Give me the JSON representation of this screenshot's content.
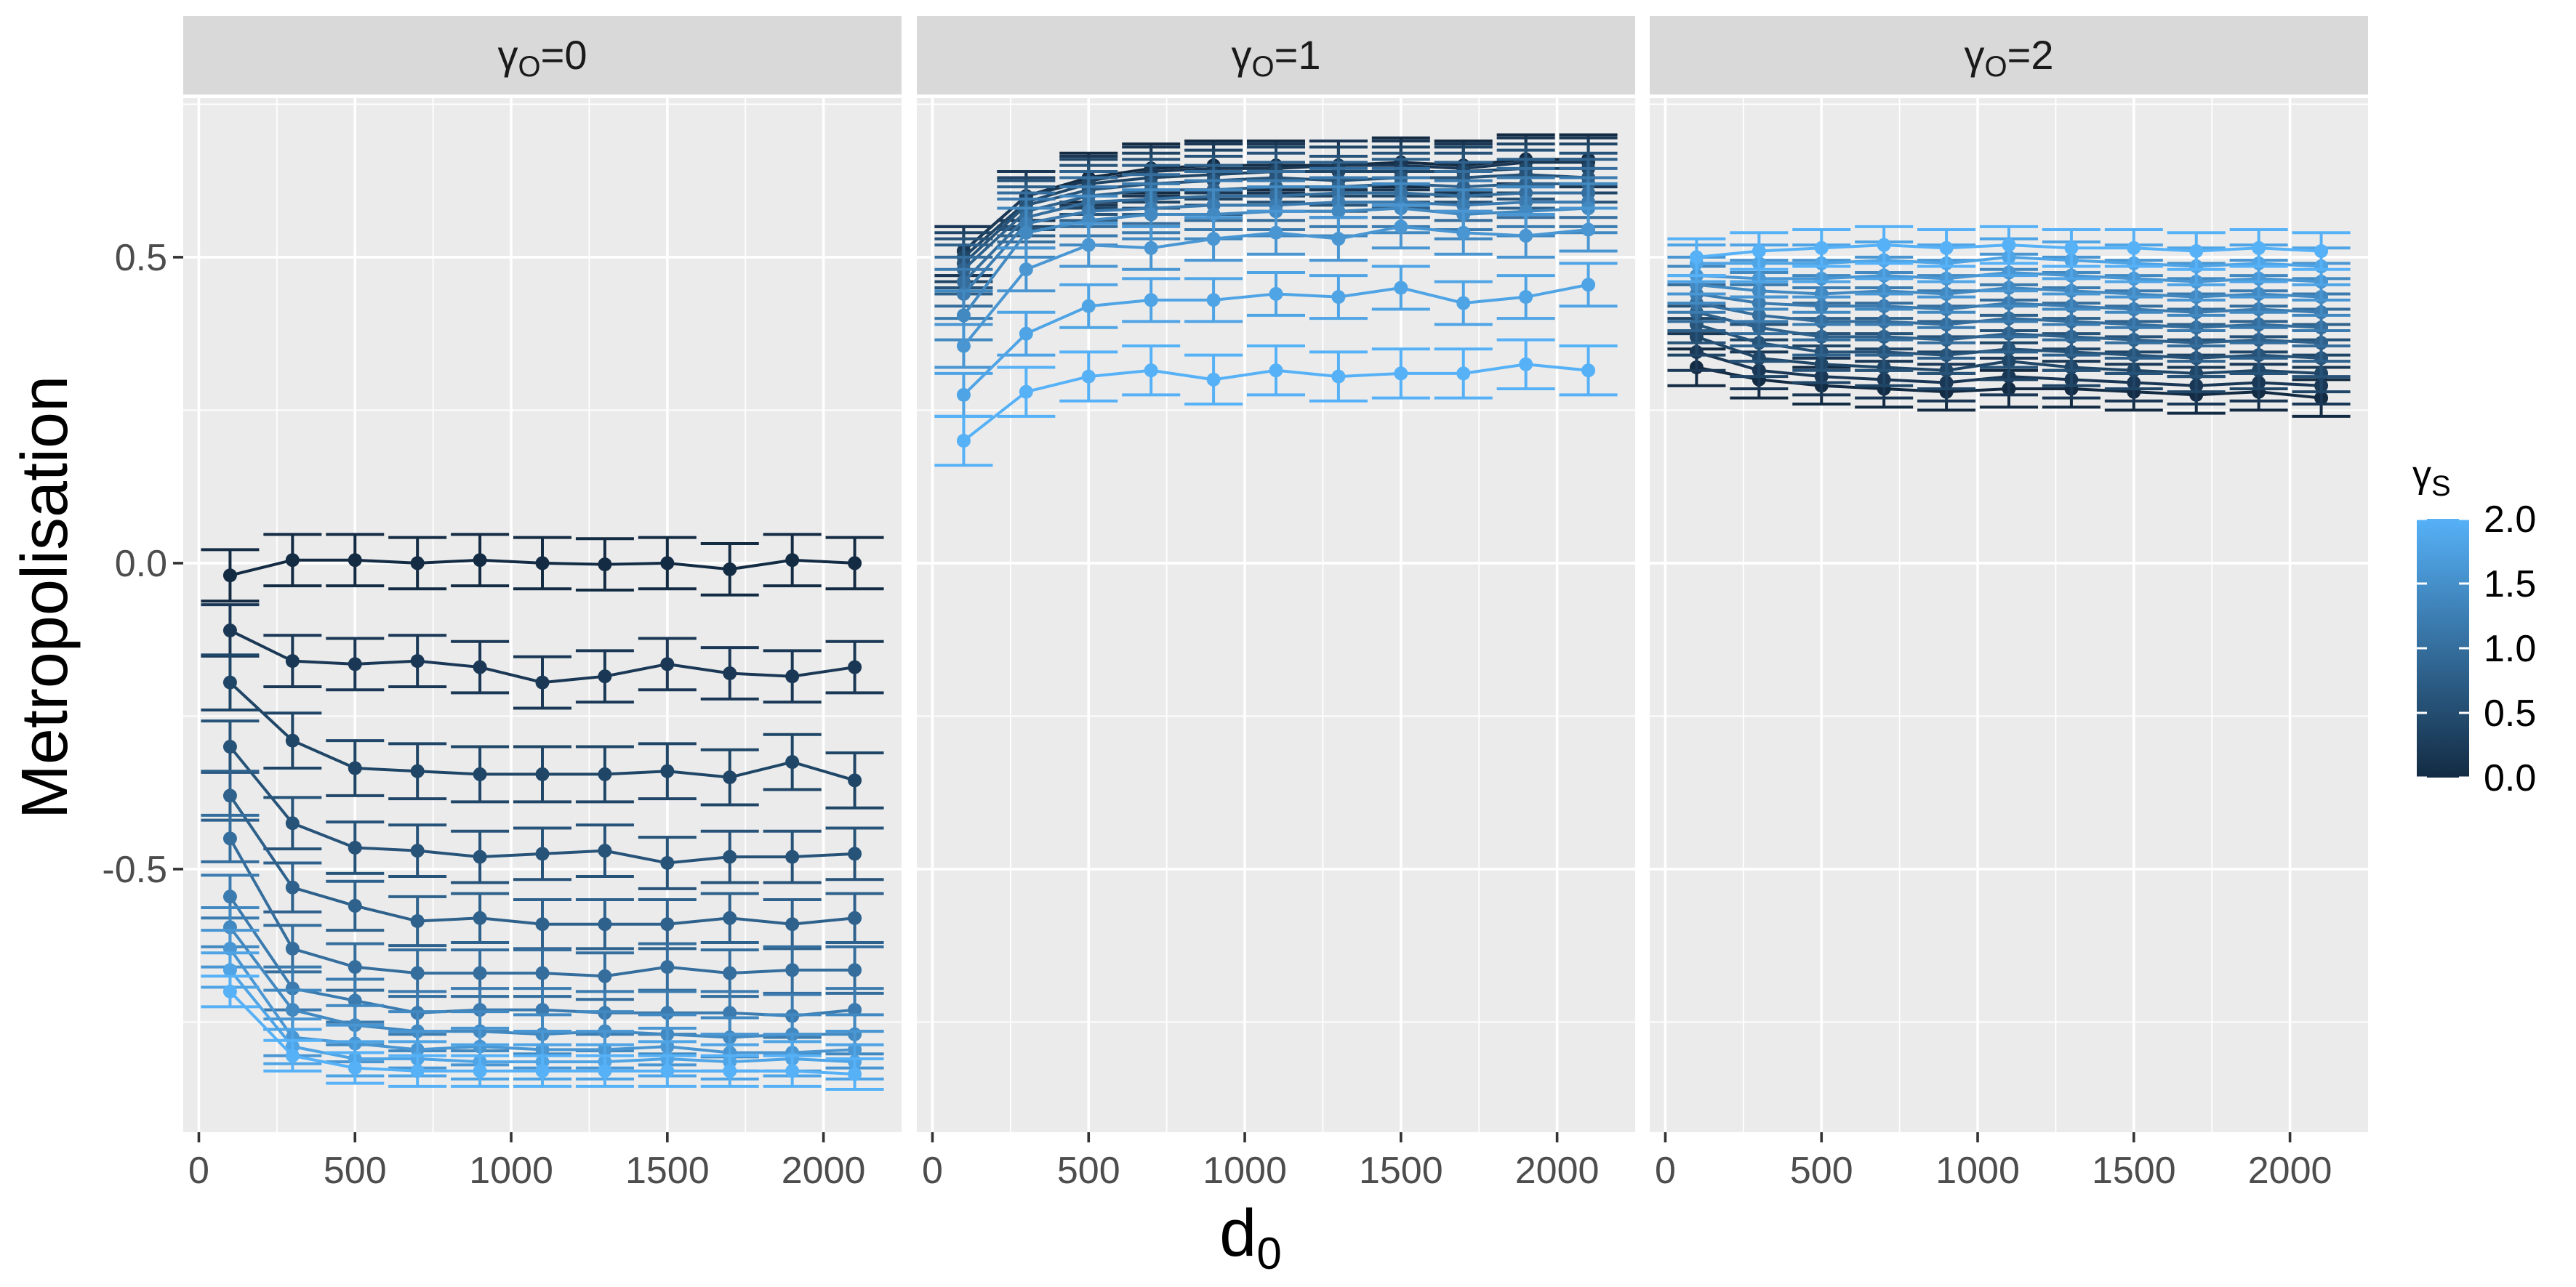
{
  "chart_data": {
    "type": "line",
    "x_axis": {
      "title": "d",
      "title_subscript": "0",
      "ticks": [
        0,
        500,
        1000,
        1500,
        2000
      ],
      "range": [
        -50,
        2250
      ]
    },
    "y_axis": {
      "title": "Metropolisation",
      "ticks": [
        0.5,
        0.0,
        -0.5
      ],
      "tick_labels": [
        "0.5",
        "0.0",
        "-0.5"
      ],
      "range": [
        -0.93,
        0.76
      ]
    },
    "x_values": [
      100,
      300,
      500,
      700,
      900,
      1100,
      1300,
      1500,
      1700,
      1900,
      2100
    ],
    "legend": {
      "title": "γ",
      "title_subscript": "S",
      "ticks": [
        2.0,
        1.5,
        1.0,
        0.5,
        0.0
      ],
      "tick_labels": [
        "2.0",
        "1.5",
        "1.0",
        "0.5",
        "0.0"
      ],
      "color_low": "#132B43",
      "color_high": "#56B1F7",
      "placement": "right"
    },
    "facets": [
      {
        "label_main": "γ",
        "label_sub": "O",
        "label_rest": "=0",
        "series": [
          {
            "gamma_s": 0.0,
            "y": [
              -0.02,
              0.005,
              0.005,
              0.0,
              0.005,
              0.0,
              -0.002,
              0.0,
              -0.01,
              0.005,
              0.0
            ],
            "err": 0.042
          },
          {
            "gamma_s": 0.2,
            "y": [
              -0.11,
              -0.16,
              -0.165,
              -0.16,
              -0.17,
              -0.195,
              -0.185,
              -0.165,
              -0.18,
              -0.185,
              -0.17
            ],
            "err": 0.042
          },
          {
            "gamma_s": 0.4,
            "y": [
              -0.195,
              -0.29,
              -0.335,
              -0.34,
              -0.345,
              -0.345,
              -0.345,
              -0.34,
              -0.35,
              -0.325,
              -0.355
            ],
            "err": 0.045
          },
          {
            "gamma_s": 0.6,
            "y": [
              -0.3,
              -0.425,
              -0.465,
              -0.47,
              -0.48,
              -0.475,
              -0.47,
              -0.49,
              -0.48,
              -0.48,
              -0.475
            ],
            "err": 0.042
          },
          {
            "gamma_s": 0.8,
            "y": [
              -0.38,
              -0.53,
              -0.56,
              -0.585,
              -0.58,
              -0.59,
              -0.59,
              -0.59,
              -0.58,
              -0.59,
              -0.58
            ],
            "err": 0.04
          },
          {
            "gamma_s": 1.0,
            "y": [
              -0.45,
              -0.63,
              -0.66,
              -0.67,
              -0.67,
              -0.67,
              -0.675,
              -0.66,
              -0.67,
              -0.665,
              -0.665
            ],
            "err": 0.038
          },
          {
            "gamma_s": 1.2,
            "y": [
              -0.545,
              -0.695,
              -0.715,
              -0.735,
              -0.73,
              -0.73,
              -0.735,
              -0.735,
              -0.735,
              -0.74,
              -0.73
            ],
            "err": 0.035
          },
          {
            "gamma_s": 1.4,
            "y": [
              -0.595,
              -0.73,
              -0.755,
              -0.765,
              -0.765,
              -0.77,
              -0.765,
              -0.77,
              -0.775,
              -0.77,
              -0.77
            ],
            "err": 0.032
          },
          {
            "gamma_s": 1.6,
            "y": [
              -0.63,
              -0.775,
              -0.785,
              -0.795,
              -0.79,
              -0.795,
              -0.795,
              -0.79,
              -0.8,
              -0.8,
              -0.795
            ],
            "err": 0.03
          },
          {
            "gamma_s": 1.8,
            "y": [
              -0.665,
              -0.79,
              -0.81,
              -0.81,
              -0.815,
              -0.815,
              -0.815,
              -0.81,
              -0.815,
              -0.81,
              -0.815
            ],
            "err": 0.028
          },
          {
            "gamma_s": 2.0,
            "y": [
              -0.7,
              -0.805,
              -0.825,
              -0.83,
              -0.83,
              -0.83,
              -0.83,
              -0.83,
              -0.83,
              -0.83,
              -0.835
            ],
            "err": 0.025
          }
        ]
      },
      {
        "label_main": "γ",
        "label_sub": "O",
        "label_rest": "=1",
        "series": [
          {
            "gamma_s": 0.0,
            "y": [
              0.51,
              0.6,
              0.63,
              0.645,
              0.65,
              0.65,
              0.65,
              0.655,
              0.65,
              0.66,
              0.66
            ],
            "err": 0.04
          },
          {
            "gamma_s": 0.2,
            "y": [
              0.51,
              0.6,
              0.625,
              0.64,
              0.645,
              0.645,
              0.65,
              0.65,
              0.645,
              0.655,
              0.655
            ],
            "err": 0.04
          },
          {
            "gamma_s": 0.4,
            "y": [
              0.5,
              0.59,
              0.62,
              0.63,
              0.635,
              0.64,
              0.64,
              0.64,
              0.64,
              0.645,
              0.645
            ],
            "err": 0.04
          },
          {
            "gamma_s": 0.6,
            "y": [
              0.49,
              0.585,
              0.61,
              0.62,
              0.625,
              0.63,
              0.625,
              0.63,
              0.63,
              0.635,
              0.63
            ],
            "err": 0.04
          },
          {
            "gamma_s": 0.8,
            "y": [
              0.48,
              0.575,
              0.6,
              0.61,
              0.61,
              0.615,
              0.615,
              0.62,
              0.615,
              0.62,
              0.62
            ],
            "err": 0.04
          },
          {
            "gamma_s": 1.0,
            "y": [
              0.46,
              0.565,
              0.59,
              0.595,
              0.6,
              0.6,
              0.605,
              0.605,
              0.6,
              0.605,
              0.605
            ],
            "err": 0.04
          },
          {
            "gamma_s": 1.2,
            "y": [
              0.44,
              0.555,
              0.575,
              0.58,
              0.585,
              0.585,
              0.59,
              0.59,
              0.585,
              0.59,
              0.59
            ],
            "err": 0.04
          },
          {
            "gamma_s": 1.4,
            "y": [
              0.405,
              0.54,
              0.56,
              0.57,
              0.57,
              0.575,
              0.575,
              0.58,
              0.57,
              0.575,
              0.58
            ],
            "err": 0.04
          },
          {
            "gamma_s": 1.6,
            "y": [
              0.355,
              0.48,
              0.52,
              0.515,
              0.53,
              0.54,
              0.53,
              0.55,
              0.54,
              0.535,
              0.545
            ],
            "err": 0.035
          },
          {
            "gamma_s": 1.8,
            "y": [
              0.275,
              0.375,
              0.42,
              0.43,
              0.43,
              0.44,
              0.435,
              0.45,
              0.425,
              0.435,
              0.455
            ],
            "err": 0.035
          },
          {
            "gamma_s": 2.0,
            "y": [
              0.2,
              0.28,
              0.305,
              0.315,
              0.3,
              0.315,
              0.305,
              0.31,
              0.31,
              0.325,
              0.315
            ],
            "err": 0.04
          }
        ]
      },
      {
        "label_main": "γ",
        "label_sub": "O",
        "label_rest": "=2",
        "series": [
          {
            "gamma_s": 0.0,
            "y": [
              0.32,
              0.3,
              0.29,
              0.285,
              0.28,
              0.285,
              0.285,
              0.28,
              0.275,
              0.28,
              0.27
            ],
            "err": 0.03
          },
          {
            "gamma_s": 0.2,
            "y": [
              0.345,
              0.315,
              0.305,
              0.3,
              0.295,
              0.305,
              0.3,
              0.295,
              0.29,
              0.295,
              0.29
            ],
            "err": 0.03
          },
          {
            "gamma_s": 0.4,
            "y": [
              0.37,
              0.335,
              0.325,
              0.32,
              0.315,
              0.33,
              0.32,
              0.315,
              0.31,
              0.315,
              0.31
            ],
            "err": 0.03
          },
          {
            "gamma_s": 0.6,
            "y": [
              0.39,
              0.36,
              0.345,
              0.345,
              0.34,
              0.35,
              0.345,
              0.34,
              0.335,
              0.34,
              0.335
            ],
            "err": 0.03
          },
          {
            "gamma_s": 0.8,
            "y": [
              0.41,
              0.385,
              0.37,
              0.37,
              0.365,
              0.375,
              0.37,
              0.365,
              0.36,
              0.365,
              0.36
            ],
            "err": 0.03
          },
          {
            "gamma_s": 1.0,
            "y": [
              0.425,
              0.405,
              0.395,
              0.395,
              0.39,
              0.4,
              0.395,
              0.39,
              0.385,
              0.39,
              0.385
            ],
            "err": 0.03
          },
          {
            "gamma_s": 1.2,
            "y": [
              0.44,
              0.425,
              0.42,
              0.42,
              0.415,
              0.425,
              0.42,
              0.415,
              0.41,
              0.415,
              0.41
            ],
            "err": 0.03
          },
          {
            "gamma_s": 1.4,
            "y": [
              0.455,
              0.445,
              0.44,
              0.445,
              0.44,
              0.45,
              0.445,
              0.44,
              0.435,
              0.44,
              0.435
            ],
            "err": 0.03
          },
          {
            "gamma_s": 1.6,
            "y": [
              0.47,
              0.465,
              0.465,
              0.47,
              0.465,
              0.475,
              0.47,
              0.465,
              0.46,
              0.465,
              0.46
            ],
            "err": 0.03
          },
          {
            "gamma_s": 1.8,
            "y": [
              0.49,
              0.49,
              0.49,
              0.495,
              0.49,
              0.5,
              0.495,
              0.49,
              0.485,
              0.49,
              0.485
            ],
            "err": 0.03
          },
          {
            "gamma_s": 2.0,
            "y": [
              0.5,
              0.51,
              0.515,
              0.52,
              0.515,
              0.52,
              0.515,
              0.515,
              0.51,
              0.515,
              0.51
            ],
            "err": 0.03
          }
        ]
      }
    ]
  }
}
